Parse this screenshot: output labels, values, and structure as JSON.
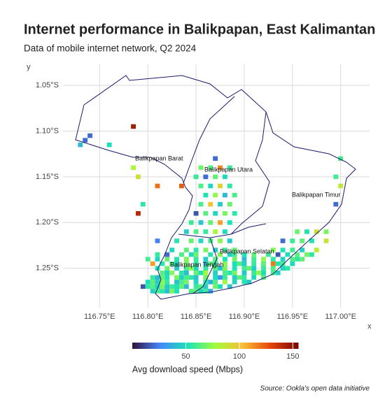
{
  "chart_data": {
    "type": "heatmap-map",
    "title": "Internet performance in Balikpapan, East Kalimantan",
    "subtitle": "Data of mobile internet network, Q2 2024",
    "source": "Source: Ookla's open data initiative",
    "xlabel": "x",
    "ylabel": "y",
    "xlim": [
      116.712,
      117.03
    ],
    "ylim": [
      -1.293,
      -1.027
    ],
    "xticks": [
      {
        "value": 116.75,
        "label": "116.75°E"
      },
      {
        "value": 116.8,
        "label": "116.80°E"
      },
      {
        "value": 116.85,
        "label": "116.85°E"
      },
      {
        "value": 116.9,
        "label": "116.90°E"
      },
      {
        "value": 116.95,
        "label": "116.95°E"
      },
      {
        "value": 117.0,
        "label": "117.00°E"
      }
    ],
    "yticks": [
      {
        "value": -1.05,
        "label": "1.05°S"
      },
      {
        "value": -1.1,
        "label": "1.10°S"
      },
      {
        "value": -1.15,
        "label": "1.15°S"
      },
      {
        "value": -1.2,
        "label": "1.20°S"
      },
      {
        "value": -1.25,
        "label": "1.25°S"
      }
    ],
    "grid": true,
    "annotations": [
      "Balikpapan Barat",
      "Balikpapan Utara",
      "Balikpapan Timur",
      "Balikpapan Selatan",
      "Balikpapan Tengah"
    ],
    "colorbar": {
      "label": "Avg download speed (Mbps)",
      "lim": [
        0,
        155
      ],
      "ticks": [
        50,
        100,
        150
      ],
      "colors": [
        "#30123b",
        "#4686fb",
        "#1ae4b6",
        "#a2fc3c",
        "#fabf32",
        "#e4460a",
        "#7a0403"
      ]
    },
    "cells": [
      [
        116.805,
        -1.275,
        45
      ],
      [
        116.81,
        -1.275,
        60
      ],
      [
        116.815,
        -1.275,
        55
      ],
      [
        116.82,
        -1.275,
        40
      ],
      [
        116.825,
        -1.275,
        70
      ],
      [
        116.83,
        -1.275,
        50
      ],
      [
        116.845,
        -1.275,
        62
      ],
      [
        116.85,
        -1.275,
        65
      ],
      [
        116.855,
        -1.275,
        48
      ],
      [
        116.86,
        -1.275,
        58
      ],
      [
        116.865,
        -1.275,
        35
      ],
      [
        116.795,
        -1.27,
        15
      ],
      [
        116.8,
        -1.27,
        55
      ],
      [
        116.805,
        -1.27,
        62
      ],
      [
        116.81,
        -1.27,
        48
      ],
      [
        116.815,
        -1.27,
        70
      ],
      [
        116.82,
        -1.27,
        44
      ],
      [
        116.825,
        -1.27,
        58
      ],
      [
        116.83,
        -1.27,
        52
      ],
      [
        116.835,
        -1.27,
        66
      ],
      [
        116.84,
        -1.27,
        40
      ],
      [
        116.85,
        -1.27,
        57
      ],
      [
        116.855,
        -1.27,
        63
      ],
      [
        116.86,
        -1.27,
        45
      ],
      [
        116.87,
        -1.27,
        68
      ],
      [
        116.875,
        -1.27,
        50
      ],
      [
        116.885,
        -1.27,
        42
      ],
      [
        116.8,
        -1.265,
        50
      ],
      [
        116.805,
        -1.265,
        64
      ],
      [
        116.81,
        -1.265,
        45
      ],
      [
        116.815,
        -1.265,
        72
      ],
      [
        116.82,
        -1.265,
        56
      ],
      [
        116.83,
        -1.265,
        42
      ],
      [
        116.835,
        -1.265,
        60
      ],
      [
        116.84,
        -1.265,
        68
      ],
      [
        116.85,
        -1.265,
        48
      ],
      [
        116.86,
        -1.265,
        55
      ],
      [
        116.865,
        -1.265,
        38
      ],
      [
        116.87,
        -1.265,
        62
      ],
      [
        116.88,
        -1.265,
        75
      ],
      [
        116.89,
        -1.265,
        47
      ],
      [
        116.9,
        -1.265,
        53
      ],
      [
        116.905,
        -1.265,
        44
      ],
      [
        116.805,
        -1.26,
        58
      ],
      [
        116.81,
        -1.26,
        40
      ],
      [
        116.815,
        -1.26,
        66
      ],
      [
        116.82,
        -1.26,
        52
      ],
      [
        116.83,
        -1.26,
        70
      ],
      [
        116.835,
        -1.26,
        47
      ],
      [
        116.84,
        -1.26,
        61
      ],
      [
        116.845,
        -1.26,
        55
      ],
      [
        116.85,
        -1.26,
        43
      ],
      [
        116.86,
        -1.26,
        68
      ],
      [
        116.87,
        -1.26,
        50
      ],
      [
        116.875,
        -1.26,
        30
      ],
      [
        116.88,
        -1.26,
        59
      ],
      [
        116.89,
        -1.26,
        45
      ],
      [
        116.895,
        -1.26,
        64
      ],
      [
        116.9,
        -1.26,
        57
      ],
      [
        116.91,
        -1.26,
        49
      ],
      [
        116.92,
        -1.26,
        62
      ],
      [
        116.815,
        -1.255,
        63
      ],
      [
        116.82,
        -1.255,
        48
      ],
      [
        116.825,
        -1.255,
        72
      ],
      [
        116.835,
        -1.255,
        55
      ],
      [
        116.84,
        -1.255,
        41
      ],
      [
        116.85,
        -1.255,
        66
      ],
      [
        116.855,
        -1.255,
        52
      ],
      [
        116.86,
        -1.255,
        78
      ],
      [
        116.87,
        -1.255,
        47
      ],
      [
        116.88,
        -1.255,
        60
      ],
      [
        116.885,
        -1.255,
        54
      ],
      [
        116.89,
        -1.255,
        69
      ],
      [
        116.9,
        -1.255,
        44
      ],
      [
        116.91,
        -1.255,
        58
      ],
      [
        116.915,
        -1.255,
        73
      ],
      [
        116.92,
        -1.255,
        50
      ],
      [
        116.93,
        -1.255,
        61
      ],
      [
        116.935,
        -1.255,
        46
      ],
      [
        116.81,
        -1.25,
        52
      ],
      [
        116.82,
        -1.25,
        67
      ],
      [
        116.83,
        -1.25,
        45
      ],
      [
        116.84,
        -1.25,
        60
      ],
      [
        116.845,
        -1.25,
        74
      ],
      [
        116.85,
        -1.25,
        48
      ],
      [
        116.86,
        -1.25,
        56
      ],
      [
        116.87,
        -1.25,
        63
      ],
      [
        116.875,
        -1.25,
        42
      ],
      [
        116.88,
        -1.25,
        70
      ],
      [
        116.89,
        -1.25,
        51
      ],
      [
        116.9,
        -1.25,
        59
      ],
      [
        116.905,
        -1.25,
        66
      ],
      [
        116.91,
        -1.25,
        45
      ],
      [
        116.92,
        -1.25,
        57
      ],
      [
        116.93,
        -1.25,
        62
      ],
      [
        116.94,
        -1.25,
        48
      ],
      [
        116.945,
        -1.25,
        55
      ],
      [
        116.805,
        -1.245,
        110
      ],
      [
        116.815,
        -1.245,
        54
      ],
      [
        116.825,
        -1.245,
        61
      ],
      [
        116.83,
        -1.245,
        47
      ],
      [
        116.84,
        -1.245,
        69
      ],
      [
        116.85,
        -1.245,
        55
      ],
      [
        116.86,
        -1.245,
        43
      ],
      [
        116.865,
        -1.245,
        65
      ],
      [
        116.87,
        -1.245,
        58
      ],
      [
        116.88,
        -1.245,
        72
      ],
      [
        116.89,
        -1.245,
        50
      ],
      [
        116.895,
        -1.245,
        62
      ],
      [
        116.9,
        -1.245,
        46
      ],
      [
        116.91,
        -1.245,
        57
      ],
      [
        116.92,
        -1.245,
        64
      ],
      [
        116.93,
        -1.245,
        118
      ],
      [
        116.935,
        -1.245,
        53
      ],
      [
        116.94,
        -1.245,
        60
      ],
      [
        116.95,
        -1.245,
        49
      ],
      [
        116.8,
        -1.24,
        60
      ],
      [
        116.81,
        -1.24,
        48
      ],
      [
        116.82,
        -1.24,
        66
      ],
      [
        116.83,
        -1.24,
        53
      ],
      [
        116.84,
        -1.24,
        70
      ],
      [
        116.85,
        -1.24,
        57
      ],
      [
        116.86,
        -1.24,
        45
      ],
      [
        116.87,
        -1.24,
        63
      ],
      [
        116.88,
        -1.24,
        52
      ],
      [
        116.89,
        -1.24,
        68
      ],
      [
        116.9,
        -1.24,
        41
      ],
      [
        116.91,
        -1.24,
        59
      ],
      [
        116.92,
        -1.24,
        74
      ],
      [
        116.93,
        -1.24,
        55
      ],
      [
        116.94,
        -1.24,
        47
      ],
      [
        116.95,
        -1.24,
        62
      ],
      [
        116.955,
        -1.24,
        56
      ],
      [
        116.96,
        -1.24,
        65
      ],
      [
        116.81,
        -1.235,
        57
      ],
      [
        116.82,
        -1.235,
        20
      ],
      [
        116.835,
        -1.235,
        62
      ],
      [
        116.845,
        -1.235,
        49
      ],
      [
        116.85,
        -1.235,
        67
      ],
      [
        116.865,
        -1.235,
        54
      ],
      [
        116.875,
        -1.235,
        71
      ],
      [
        116.885,
        -1.235,
        46
      ],
      [
        116.89,
        -1.235,
        60
      ],
      [
        116.9,
        -1.235,
        53
      ],
      [
        116.91,
        -1.235,
        65
      ],
      [
        116.925,
        -1.235,
        58
      ],
      [
        116.935,
        -1.235,
        15
      ],
      [
        116.945,
        -1.235,
        50
      ],
      [
        116.955,
        -1.235,
        63
      ],
      [
        116.965,
        -1.235,
        69
      ],
      [
        116.97,
        -1.235,
        55
      ],
      [
        116.825,
        -1.23,
        48
      ],
      [
        116.84,
        -1.23,
        64
      ],
      [
        116.85,
        -1.23,
        55
      ],
      [
        116.86,
        -1.23,
        70
      ],
      [
        116.87,
        -1.23,
        44
      ],
      [
        116.88,
        -1.23,
        58
      ],
      [
        116.89,
        -1.23,
        66
      ],
      [
        116.93,
        -1.23,
        72
      ],
      [
        116.94,
        -1.23,
        52
      ],
      [
        116.95,
        -1.23,
        60
      ],
      [
        116.96,
        -1.23,
        47
      ],
      [
        116.975,
        -1.23,
        85
      ],
      [
        116.81,
        -1.22,
        25
      ],
      [
        116.83,
        -1.22,
        54
      ],
      [
        116.845,
        -1.22,
        66
      ],
      [
        116.855,
        -1.22,
        48
      ],
      [
        116.865,
        -1.22,
        61
      ],
      [
        116.875,
        -1.22,
        73
      ],
      [
        116.885,
        -1.22,
        44
      ],
      [
        116.94,
        -1.22,
        20
      ],
      [
        116.95,
        -1.22,
        58
      ],
      [
        116.96,
        -1.22,
        65
      ],
      [
        116.97,
        -1.22,
        52
      ],
      [
        116.985,
        -1.22,
        88
      ],
      [
        116.84,
        -1.21,
        45
      ],
      [
        116.85,
        -1.21,
        62
      ],
      [
        116.86,
        -1.21,
        57
      ],
      [
        116.87,
        -1.21,
        80
      ],
      [
        116.88,
        -1.21,
        50
      ],
      [
        116.955,
        -1.21,
        67
      ],
      [
        116.965,
        -1.21,
        53
      ],
      [
        116.975,
        -1.21,
        90
      ],
      [
        116.985,
        -1.21,
        70
      ],
      [
        116.845,
        -1.2,
        58
      ],
      [
        116.855,
        -1.2,
        43
      ],
      [
        116.865,
        -1.2,
        66
      ],
      [
        116.875,
        -1.2,
        110
      ],
      [
        116.885,
        -1.2,
        52
      ],
      [
        116.85,
        -1.19,
        15
      ],
      [
        116.86,
        -1.19,
        63
      ],
      [
        116.87,
        -1.19,
        48
      ],
      [
        116.88,
        -1.19,
        70
      ],
      [
        116.89,
        -1.19,
        55
      ],
      [
        116.79,
        -1.19,
        140
      ],
      [
        116.855,
        -1.18,
        60
      ],
      [
        116.865,
        -1.18,
        100
      ],
      [
        116.875,
        -1.18,
        45
      ],
      [
        116.885,
        -1.18,
        67
      ],
      [
        116.795,
        -1.18,
        55
      ],
      [
        116.995,
        -1.18,
        20
      ],
      [
        116.86,
        -1.17,
        52
      ],
      [
        116.87,
        -1.17,
        74
      ],
      [
        116.88,
        -1.17,
        40
      ],
      [
        116.89,
        -1.17,
        61
      ],
      [
        116.835,
        -1.16,
        125
      ],
      [
        116.855,
        -1.16,
        62
      ],
      [
        116.865,
        -1.16,
        48
      ],
      [
        116.875,
        -1.16,
        95
      ],
      [
        116.885,
        -1.16,
        56
      ],
      [
        116.81,
        -1.16,
        120
      ],
      [
        117.0,
        -1.16,
        85
      ],
      [
        116.85,
        -1.15,
        57
      ],
      [
        116.86,
        -1.15,
        20
      ],
      [
        116.87,
        -1.15,
        65
      ],
      [
        116.88,
        -1.15,
        49
      ],
      [
        116.79,
        -1.15,
        90
      ],
      [
        116.995,
        -1.15,
        60
      ],
      [
        116.855,
        -1.14,
        68
      ],
      [
        116.865,
        -1.14,
        62
      ],
      [
        116.875,
        -1.14,
        115
      ],
      [
        116.885,
        -1.14,
        58
      ],
      [
        116.785,
        -1.14,
        80
      ],
      [
        116.87,
        -1.13,
        20
      ],
      [
        117.0,
        -1.13,
        60
      ],
      [
        116.735,
        -1.11,
        20
      ],
      [
        116.74,
        -1.105,
        20
      ],
      [
        116.73,
        -1.115,
        40
      ],
      [
        116.76,
        -1.115,
        50
      ],
      [
        116.785,
        -1.095,
        145
      ]
    ]
  }
}
